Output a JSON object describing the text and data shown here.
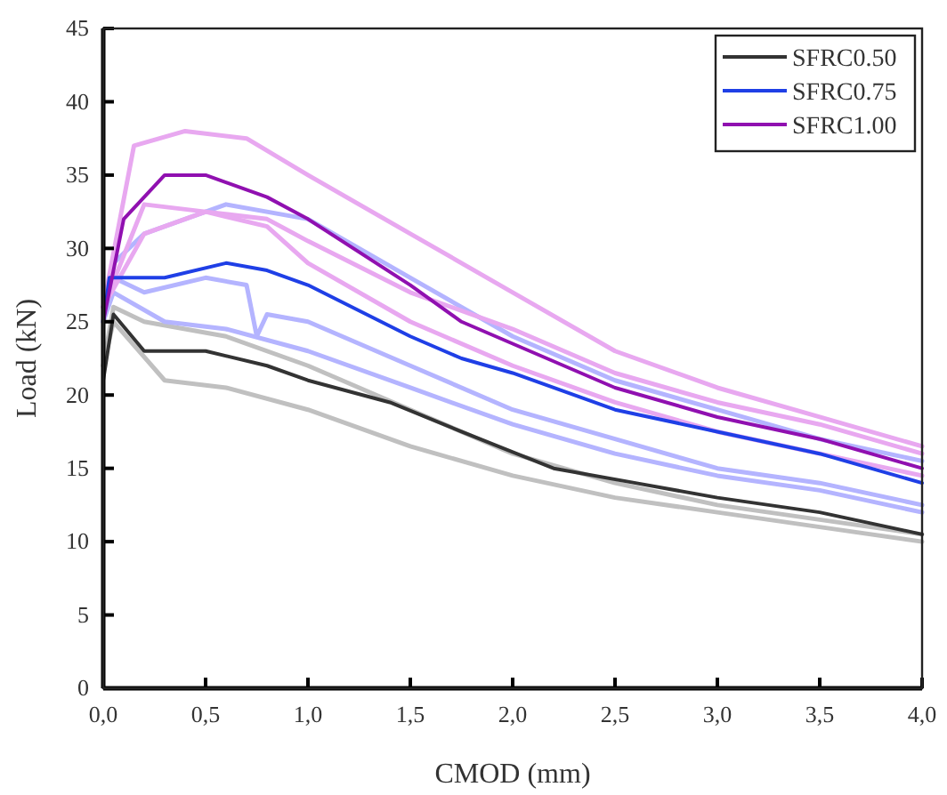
{
  "chart_data": {
    "type": "line",
    "xlabel": "CMOD (mm)",
    "ylabel": "Load (kN)",
    "xlim": [
      0,
      4
    ],
    "ylim": [
      0,
      45
    ],
    "xticks": [
      {
        "value": 0,
        "label": "0,0"
      },
      {
        "value": 0.5,
        "label": "0,5"
      },
      {
        "value": 1,
        "label": "1,0"
      },
      {
        "value": 1.5,
        "label": "1,5"
      },
      {
        "value": 2,
        "label": "2,0"
      },
      {
        "value": 2.5,
        "label": "2,5"
      },
      {
        "value": 3,
        "label": "3,0"
      },
      {
        "value": 3.5,
        "label": "3,5"
      },
      {
        "value": 4,
        "label": "4,0"
      }
    ],
    "yticks": [
      0,
      5,
      10,
      15,
      20,
      25,
      30,
      35,
      40,
      45
    ],
    "legend": "top right",
    "grid": false,
    "line_style": "solid",
    "marker": "none",
    "series": [
      {
        "color": "#c0c0c0",
        "x": [
          0,
          0.05,
          0.2,
          0.6,
          1,
          1.5,
          2,
          2.5,
          3,
          3.5,
          4
        ],
        "values": [
          22,
          26,
          25,
          24,
          22,
          19,
          16,
          14,
          12.5,
          11.5,
          10.5
        ]
      },
      {
        "color": "#c0c0c0",
        "x": [
          0,
          0.05,
          0.3,
          0.6,
          1,
          1.5,
          2,
          2.5,
          3,
          3.5,
          4
        ],
        "values": [
          22,
          25,
          21,
          20.5,
          19,
          16.5,
          14.5,
          13,
          12,
          11,
          10
        ]
      },
      {
        "color": "#b4b4ff",
        "x": [
          0,
          0.05,
          0.2,
          0.6,
          1,
          1.5,
          2,
          2.5,
          3,
          3.5,
          4
        ],
        "values": [
          25,
          29,
          31,
          33,
          32,
          28,
          24,
          21,
          19,
          17,
          15.5
        ]
      },
      {
        "color": "#b4b4ff",
        "x": [
          0,
          0.05,
          0.2,
          0.5,
          0.7,
          0.75,
          0.8,
          1,
          1.5,
          2,
          2.5,
          3,
          3.5,
          4
        ],
        "values": [
          25,
          28,
          27,
          28,
          27.5,
          24,
          25.5,
          25,
          22,
          19,
          17,
          15,
          14,
          12.5
        ]
      },
      {
        "color": "#b4b4ff",
        "x": [
          0,
          0.05,
          0.3,
          0.6,
          1,
          1.5,
          2,
          2.5,
          3,
          3.5,
          4
        ],
        "values": [
          25,
          27,
          25,
          24.5,
          23,
          20.5,
          18,
          16,
          14.5,
          13.5,
          12
        ]
      },
      {
        "color": "#e8a8f0",
        "x": [
          0,
          0.15,
          0.4,
          0.7,
          1,
          1.5,
          2,
          2.5,
          3,
          3.5,
          4
        ],
        "values": [
          26,
          37,
          38,
          37.5,
          35,
          31,
          27,
          23,
          20.5,
          18.5,
          16.5
        ]
      },
      {
        "color": "#e8a8f0",
        "x": [
          0,
          0.2,
          0.5,
          0.8,
          1,
          1.5,
          2,
          2.5,
          3,
          3.5,
          4
        ],
        "values": [
          26,
          33,
          32.5,
          32,
          30.5,
          27,
          24.5,
          21.5,
          19.5,
          18,
          16
        ]
      },
      {
        "color": "#e8a8f0",
        "x": [
          0,
          0.2,
          0.5,
          0.8,
          1,
          1.5,
          2,
          2.5,
          3,
          3.5,
          4
        ],
        "values": [
          26,
          31,
          32.5,
          31.5,
          29,
          25,
          22,
          19.5,
          17.5,
          16,
          14.5
        ]
      },
      {
        "name": "SFRC0.50",
        "color": "#333333",
        "x": [
          0,
          0.05,
          0.2,
          0.5,
          0.8,
          1,
          1.4,
          1.75,
          2.2,
          2.6,
          3,
          3.5,
          4
        ],
        "values": [
          21,
          25.5,
          23,
          23,
          22,
          21,
          19.5,
          17.5,
          15,
          14,
          13,
          12,
          10.5
        ]
      },
      {
        "name": "SFRC0.75",
        "color": "#1f3fe6",
        "x": [
          0,
          0.03,
          0.3,
          0.6,
          0.8,
          1,
          1.5,
          1.75,
          2,
          2.5,
          3,
          3.5,
          4
        ],
        "values": [
          25,
          28,
          28,
          29,
          28.5,
          27.5,
          24,
          22.5,
          21.5,
          19,
          17.5,
          16,
          14
        ]
      },
      {
        "name": "SFRC1.00",
        "color": "#9010b0",
        "x": [
          0,
          0.1,
          0.3,
          0.5,
          0.8,
          1,
          1.5,
          1.75,
          2,
          2.5,
          3,
          3.5,
          4
        ],
        "values": [
          25,
          32,
          35,
          35,
          33.5,
          32,
          27.5,
          25,
          23.5,
          20.5,
          18.5,
          17,
          15
        ]
      }
    ]
  }
}
